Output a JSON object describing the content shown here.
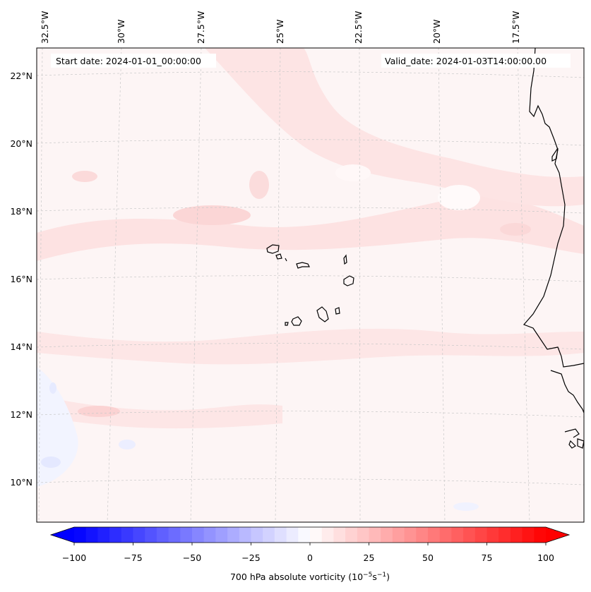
{
  "header": {
    "start_date": "Start date: 2024-01-01_00:00:00",
    "valid_date": "Valid_date: 2024-01-03T14:00:00.00"
  },
  "longitude_labels": [
    "32.5°W",
    "30°W",
    "27.5°W",
    "25°W",
    "22.5°W",
    "20°W",
    "17.5°W"
  ],
  "latitude_labels": [
    "22°N",
    "20°N",
    "18°N",
    "16°N",
    "14°N",
    "12°N",
    "10°N"
  ],
  "colorbar": {
    "label": "700 hPa absolute vorticity (10",
    "label_sup1": "−5",
    "label_mid": "s",
    "label_sup2": "−1",
    "label_end": ")",
    "ticks": [
      "−100",
      "−75",
      "−50",
      "−25",
      "0",
      "25",
      "50",
      "75",
      "100"
    ],
    "min": -100,
    "max": 100,
    "low_color": "#0000ff",
    "mid_color": "#ffffff",
    "high_color": "#ff0000"
  },
  "colors": {
    "background_field": "#fdf5f5",
    "positive_band": "#fde3e3",
    "negative_patch": "#f2f4ff",
    "coastline": "#000000",
    "gridline": "#c8c8c8"
  }
}
